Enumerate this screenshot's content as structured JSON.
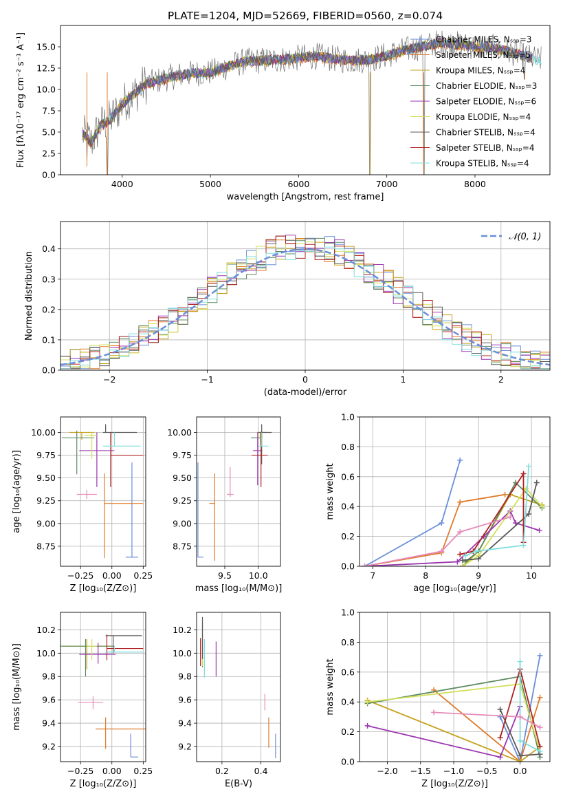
{
  "colors": [
    "#6a8ed8",
    "#e07a28",
    "#c5a21c",
    "#5c8a62",
    "#9a35b0",
    "#d2e05a",
    "#595959",
    "#b02020",
    "#7fdede"
  ],
  "extra_colors": {
    "pink": "#e68ab8"
  },
  "chart_data": [
    {
      "id": "spectrum",
      "type": "line",
      "title": "PLATE=1204, MJD=52669, FIBERID=0560, z=0.074",
      "xlabel": "wavelength [Angstrom, rest frame]",
      "ylabel": "Flux [fλ10⁻¹⁷ erg cm⁻² s⁻¹ A⁻¹]",
      "xlim": [
        3300,
        8850
      ],
      "ylim": [
        0,
        17.5
      ],
      "xticks": [
        4000,
        5000,
        6000,
        7000,
        8000
      ],
      "yticks": [
        0.0,
        2.5,
        5.0,
        7.5,
        10.0,
        12.5,
        15.0
      ],
      "legend_position": "top-right",
      "legend": [
        "Chabrier MILES, Nₛₛₚ=3",
        "Salpeter MILES, Nₛₛₚ=5",
        "Kroupa MILES, Nₛₛₚ=4",
        "Chabrier ELODIE, Nₛₛₚ=3",
        "Salpeter ELODIE, Nₛₛₚ=6",
        "Kroupa ELODIE, Nₛₛₚ=4",
        "Chabrier STELIB, Nₛₛₚ=4",
        "Salpeter STELIB, Nₛₛₚ=4",
        "Kroupa STELIB, Nₛₛₚ=4"
      ],
      "continuum": {
        "x": [
          3550,
          3650,
          3750,
          3850,
          3950,
          4050,
          4150,
          4250,
          4400,
          4600,
          4800,
          5000,
          5200,
          5400,
          5600,
          5800,
          6000,
          6200,
          6400,
          6600,
          6800,
          7000,
          7200,
          7400,
          7600,
          7800,
          8000,
          8200,
          8400,
          8700
        ],
        "y": [
          4.8,
          3.8,
          5.8,
          6.3,
          7.6,
          8.8,
          9.6,
          10.6,
          11.0,
          11.6,
          11.9,
          12.0,
          12.7,
          13.3,
          13.4,
          13.5,
          13.7,
          13.9,
          13.6,
          13.4,
          13.5,
          14.0,
          14.6,
          15.0,
          15.5,
          15.3,
          15.0,
          14.9,
          14.4,
          13.5
        ]
      },
      "dips": [
        {
          "x": 3600,
          "y": 1.0
        },
        {
          "x": 3830,
          "y": 0.0
        },
        {
          "x": 6810,
          "y": 0.0
        },
        {
          "x": 7420,
          "y": 0.0
        },
        {
          "x": 8560,
          "y": 11.2
        }
      ]
    },
    {
      "id": "residuals",
      "type": "area",
      "xlabel": "(data-model)/error",
      "ylabel": "Normed distribution",
      "xlim": [
        -2.5,
        2.5
      ],
      "ylim": [
        0,
        0.49
      ],
      "xticks": [
        -2,
        -1,
        0,
        1,
        2
      ],
      "yticks": [
        0.0,
        0.1,
        0.2,
        0.3,
        0.4
      ],
      "grid": true,
      "legend_position": "top-right",
      "legend": [
        "𝒩(0, 1)"
      ],
      "bins": 50,
      "bin_width": 0.1
    },
    {
      "id": "age_vs_Z",
      "type": "scatter",
      "xlabel": "Z [log₁₀(Z/Z⊙)]",
      "ylabel": "age  [log₁₀(age/yr)]",
      "xlim": [
        -0.41,
        0.27
      ],
      "ylim": [
        8.53,
        10.17
      ],
      "xticks": [
        -0.25,
        0.0,
        0.25
      ],
      "yticks": [
        8.75,
        9.0,
        9.25,
        9.5,
        9.75,
        10.0
      ],
      "grid": true,
      "points": [
        {
          "x": 0.16,
          "y": 8.63,
          "xerr": [
            0.05,
            0.05
          ],
          "yerr": [
            0.0,
            1.04
          ],
          "c": 0
        },
        {
          "x": -0.06,
          "y": 9.22,
          "xerr": [
            0.0,
            0.31
          ],
          "yerr": [
            0.6,
            0.33
          ],
          "c": 1
        },
        {
          "x": -0.24,
          "y": 10.0,
          "xerr": [
            0.1,
            0.1
          ],
          "yerr": [
            0.08,
            0.0
          ],
          "c": 2
        },
        {
          "x": -0.28,
          "y": 9.94,
          "xerr": [
            0.12,
            0.14
          ],
          "yerr": [
            0.4,
            0.08
          ],
          "c": 3
        },
        {
          "x": -0.12,
          "y": 9.8,
          "xerr": [
            0.14,
            0.14
          ],
          "yerr": [
            0.4,
            0.2
          ],
          "c": 4
        },
        {
          "x": -0.16,
          "y": 9.97,
          "xerr": [
            0.06,
            0.04
          ],
          "yerr": [
            0.26,
            0.03
          ],
          "c": 5
        },
        {
          "x": -0.05,
          "y": 10.0,
          "xerr": [
            0.02,
            0.25
          ],
          "yerr": [
            0.0,
            0.09
          ],
          "c": 6
        },
        {
          "x": -0.01,
          "y": 9.75,
          "xerr": [
            0.0,
            0.26
          ],
          "yerr": [
            0.35,
            0.25
          ],
          "c": 7
        },
        {
          "x": 0.02,
          "y": 9.85,
          "xerr": [
            0.09,
            0.21
          ],
          "yerr": [
            0.0,
            0.15
          ],
          "c": 8
        },
        {
          "x": -0.2,
          "y": 9.32,
          "xerr": [
            0.08,
            0.08
          ],
          "yerr": [
            0.05,
            0.05
          ],
          "pink": true
        }
      ]
    },
    {
      "id": "age_vs_mass",
      "type": "scatter",
      "xlabel": "mass [log₁₀(M/M⊙)]",
      "xlim": [
        9.08,
        10.33
      ],
      "ylim": [
        8.53,
        10.17
      ],
      "xticks": [
        9.5,
        10.0
      ],
      "yticks": [
        8.75,
        9.0,
        9.25,
        9.5,
        9.75,
        10.0
      ],
      "grid": true,
      "points": [
        {
          "x": 9.1,
          "y": 8.63,
          "xerr": [
            0.0,
            0.08
          ],
          "yerr": [
            0.0,
            1.04
          ],
          "c": 0
        },
        {
          "x": 9.35,
          "y": 9.22,
          "xerr": [
            0.08,
            0.0
          ],
          "yerr": [
            0.63,
            0.33
          ],
          "c": 1
        },
        {
          "x": 10.03,
          "y": 10.0,
          "xerr": [
            0.05,
            0.1
          ],
          "yerr": [
            0.1,
            0.0
          ],
          "c": 2
        },
        {
          "x": 10.05,
          "y": 9.94,
          "xerr": [
            0.16,
            0.0
          ],
          "yerr": [
            0.1,
            0.08
          ],
          "c": 3
        },
        {
          "x": 9.99,
          "y": 9.8,
          "xerr": [
            0.07,
            0.07
          ],
          "yerr": [
            0.38,
            0.2
          ],
          "c": 4
        },
        {
          "x": 10.03,
          "y": 9.96,
          "xerr": [
            0.04,
            0.04
          ],
          "yerr": [
            0.1,
            0.04
          ],
          "c": 5
        },
        {
          "x": 10.05,
          "y": 10.0,
          "xerr": [
            0.05,
            0.15
          ],
          "yerr": [
            0.35,
            0.09
          ],
          "c": 6
        },
        {
          "x": 10.04,
          "y": 9.75,
          "xerr": [
            0.14,
            0.1
          ],
          "yerr": [
            0.35,
            0.25
          ],
          "c": 7
        },
        {
          "x": 10.05,
          "y": 9.85,
          "xerr": [
            0.05,
            0.1
          ],
          "yerr": [
            0.0,
            0.15
          ],
          "c": 8
        },
        {
          "x": 9.58,
          "y": 9.32,
          "xerr": [
            0.05,
            0.05
          ],
          "yerr": [
            0.03,
            0.3
          ],
          "pink": true
        }
      ]
    },
    {
      "id": "mass_vs_Z",
      "type": "scatter",
      "xlabel": "Z [log₁₀(Z/Z⊙)]",
      "ylabel": "mass [log₁₀(M/M⊙)]",
      "xlim": [
        -0.41,
        0.27
      ],
      "ylim": [
        9.07,
        10.35
      ],
      "xticks": [
        -0.25,
        0.0,
        0.25
      ],
      "yticks": [
        9.2,
        9.4,
        9.6,
        9.8,
        10.0,
        10.2
      ],
      "grid": true,
      "points": [
        {
          "x": 0.15,
          "y": 9.11,
          "xerr": [
            0.0,
            0.06
          ],
          "yerr": [
            0.0,
            0.2
          ],
          "c": 0
        },
        {
          "x": -0.05,
          "y": 9.35,
          "xerr": [
            0.08,
            0.32
          ],
          "yerr": [
            0.17,
            0.1
          ],
          "c": 1
        },
        {
          "x": -0.2,
          "y": 10.06,
          "xerr": [
            0.2,
            0.22
          ],
          "yerr": [
            0.2,
            0.06
          ],
          "c": 2
        },
        {
          "x": -0.21,
          "y": 10.06,
          "xerr": [
            0.2,
            0.23
          ],
          "yerr": [
            0.26,
            0.06
          ],
          "c": 3
        },
        {
          "x": -0.11,
          "y": 9.99,
          "xerr": [
            0.15,
            0.14
          ],
          "yerr": [
            0.08,
            0.1
          ],
          "c": 4
        },
        {
          "x": -0.16,
          "y": 10.06,
          "xerr": [
            0.04,
            0.04
          ],
          "yerr": [
            0.12,
            0.06
          ],
          "c": 5
        },
        {
          "x": 0.01,
          "y": 10.15,
          "xerr": [
            0.06,
            0.23
          ],
          "yerr": [
            0.15,
            0.0
          ],
          "c": 6
        },
        {
          "x": -0.04,
          "y": 10.04,
          "xerr": [
            0.0,
            0.29
          ],
          "yerr": [
            0.1,
            0.12
          ],
          "c": 7
        },
        {
          "x": 0.02,
          "y": 10.01,
          "xerr": [
            0.07,
            0.23
          ],
          "yerr": [
            0.0,
            0.04
          ],
          "c": 8
        },
        {
          "x": -0.15,
          "y": 9.58,
          "xerr": [
            0.12,
            0.08
          ],
          "yerr": [
            0.06,
            0.05
          ],
          "pink": true
        }
      ]
    },
    {
      "id": "mass_vs_EBV",
      "type": "scatter",
      "xlabel": "E(B-V)",
      "xlim": [
        0.07,
        0.5
      ],
      "ylim": [
        9.07,
        10.35
      ],
      "xticks": [
        0.2,
        0.4
      ],
      "yticks": [
        9.2,
        9.4,
        9.6,
        9.8,
        10.0,
        10.2
      ],
      "grid": true,
      "points": [
        {
          "x": 0.475,
          "y": 9.2,
          "xerr": [
            0.0,
            0.0
          ],
          "yerr": [
            0.1,
            0.11
          ],
          "c": 0
        },
        {
          "x": 0.44,
          "y": 9.35,
          "xerr": [
            0.0,
            0.0
          ],
          "yerr": [
            0.16,
            0.1
          ],
          "c": 1
        },
        {
          "x": 0.1,
          "y": 10.06,
          "xerr": [
            0.0,
            0.0
          ],
          "yerr": [
            0.18,
            0.2
          ],
          "c": 3
        },
        {
          "x": 0.17,
          "y": 9.99,
          "xerr": [
            0.0,
            0.0
          ],
          "yerr": [
            0.19,
            0.11
          ],
          "c": 4
        },
        {
          "x": 0.1,
          "y": 10.04,
          "xerr": [
            0.0,
            0.0
          ],
          "yerr": [
            0.15,
            0.16
          ],
          "c": 5
        },
        {
          "x": 0.1,
          "y": 10.1,
          "xerr": [
            0.0,
            0.0
          ],
          "yerr": [
            0.15,
            0.21
          ],
          "c": 6
        },
        {
          "x": 0.09,
          "y": 10.0,
          "xerr": [
            0.0,
            0.0
          ],
          "yerr": [
            0.11,
            0.13
          ],
          "c": 7
        },
        {
          "x": 0.11,
          "y": 10.0,
          "xerr": [
            0.0,
            0.0
          ],
          "yerr": [
            0.21,
            0.12
          ],
          "c": 8
        },
        {
          "x": 0.42,
          "y": 9.58,
          "xerr": [
            0.0,
            0.0
          ],
          "yerr": [
            0.07,
            0.07
          ],
          "pink": true
        }
      ]
    },
    {
      "id": "weight_vs_age",
      "type": "line",
      "xlabel": "age  [log₁₀(age/yr)]",
      "ylabel": "mass weight",
      "xlim": [
        6.75,
        10.35
      ],
      "ylim": [
        0,
        1
      ],
      "xticks": [
        7,
        8,
        9,
        10
      ],
      "yticks": [
        0.0,
        0.2,
        0.4,
        0.6,
        0.8,
        1.0
      ],
      "grid": true,
      "series": [
        {
          "c": 0,
          "x": [
            6.85,
            8.3,
            8.65
          ],
          "y": [
            0.0,
            0.29,
            0.71
          ]
        },
        {
          "c": 1,
          "x": [
            6.85,
            8.3,
            8.65,
            9.5
          ],
          "y": [
            0.0,
            0.09,
            0.43,
            0.48
          ]
        },
        {
          "c": 2,
          "x": [
            8.7,
            9.0,
            9.6,
            10.2
          ],
          "y": [
            0.0,
            0.1,
            0.48,
            0.41
          ]
        },
        {
          "c": 3,
          "x": [
            8.75,
            9.0,
            9.7,
            10.2
          ],
          "y": [
            0.03,
            0.1,
            0.56,
            0.39
          ]
        },
        {
          "c": 4,
          "x": [
            6.85,
            8.6,
            9.1,
            9.6,
            9.7,
            10.15
          ],
          "y": [
            0.0,
            0.03,
            0.2,
            0.37,
            0.29,
            0.24
          ]
        },
        {
          "c": 5,
          "x": [
            8.7,
            9.0,
            9.9,
            10.2
          ],
          "y": [
            0.0,
            0.07,
            0.52,
            0.4
          ]
        },
        {
          "c": 6,
          "x": [
            8.7,
            9.0,
            9.95,
            10.1
          ],
          "y": [
            0.04,
            0.05,
            0.35,
            0.56
          ]
        },
        {
          "c": 7,
          "x": [
            8.65,
            8.9,
            9.85,
            9.85
          ],
          "y": [
            0.08,
            0.1,
            0.62,
            0.16
          ]
        },
        {
          "c": 8,
          "x": [
            8.75,
            8.95,
            9.85,
            9.95
          ],
          "y": [
            0.07,
            0.1,
            0.14,
            0.67
          ]
        },
        {
          "pink": true,
          "x": [
            6.85,
            8.3,
            8.65,
            9.6
          ],
          "y": [
            0.0,
            0.1,
            0.23,
            0.33
          ]
        }
      ]
    },
    {
      "id": "weight_vs_Z",
      "type": "line",
      "xlabel": "Z [log₁₀(Z/Z⊙)]",
      "ylabel": "mass weight",
      "xlim": [
        -2.42,
        0.45
      ],
      "ylim": [
        0,
        1
      ],
      "xticks": [
        -2.0,
        -1.5,
        -1.0,
        -0.5,
        0.0
      ],
      "yticks": [
        0.0,
        0.2,
        0.4,
        0.6,
        0.8,
        1.0
      ],
      "grid": true,
      "series": [
        {
          "c": 0,
          "x": [
            -0.3,
            0.0,
            0.3
          ],
          "y": [
            0.3,
            0.0,
            0.71
          ]
        },
        {
          "c": 1,
          "x": [
            -1.3,
            0.0,
            0.3
          ],
          "y": [
            0.48,
            0.0,
            0.43
          ]
        },
        {
          "c": 2,
          "x": [
            -2.3,
            0.0,
            0.3
          ],
          "y": [
            0.41,
            0.0,
            0.1
          ]
        },
        {
          "c": 3,
          "x": [
            -2.3,
            0.0,
            0.3
          ],
          "y": [
            0.39,
            0.57,
            0.03
          ]
        },
        {
          "c": 4,
          "x": [
            -2.3,
            -0.3,
            0.0
          ],
          "y": [
            0.24,
            0.03,
            0.37
          ]
        },
        {
          "c": 5,
          "x": [
            -2.3,
            0.0,
            0.3
          ],
          "y": [
            0.4,
            0.52,
            0.07
          ]
        },
        {
          "c": 6,
          "x": [
            -0.3,
            0.0,
            0.3
          ],
          "y": [
            0.35,
            0.04,
            0.05
          ]
        },
        {
          "c": 7,
          "x": [
            -0.3,
            0.0,
            0.3
          ],
          "y": [
            0.16,
            0.62,
            0.1
          ]
        },
        {
          "c": 8,
          "x": [
            0.0,
            0.0,
            0.3
          ],
          "y": [
            0.67,
            0.14,
            0.07
          ]
        },
        {
          "pink": true,
          "x": [
            -1.3,
            0.0,
            0.3
          ],
          "y": [
            0.33,
            0.3,
            0.23
          ]
        }
      ]
    }
  ]
}
